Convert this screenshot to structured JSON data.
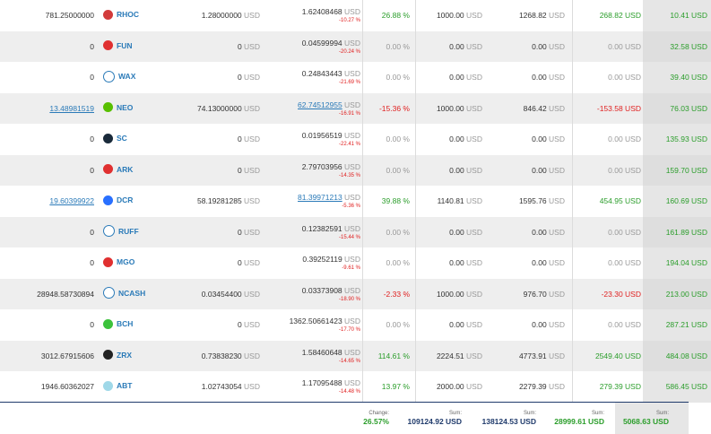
{
  "rows": [
    {
      "holdings": "781.25000000",
      "holdings_link": false,
      "coin": "RHOC",
      "icon": "rhoc-icon",
      "icon_color": "#d23b3b",
      "avg_price": "1.28000000",
      "avg_price_usd": "USD",
      "price": "1.62408468",
      "price_link": false,
      "price_usd": "USD",
      "price_change": "-10.27 %",
      "change": "26.88 %",
      "change_class": "pos",
      "invested": "1000.00",
      "invested_usd": "USD",
      "value": "1268.82",
      "value_usd": "USD",
      "profit": "268.82 USD",
      "profit_class": "pos",
      "last": "10.41 USD"
    },
    {
      "holdings": "0",
      "holdings_link": false,
      "coin": "FUN",
      "icon": "fun-icon",
      "icon_color": "#e03030",
      "avg_price": "0",
      "avg_price_usd": "USD",
      "price": "0.04599994",
      "price_link": false,
      "price_usd": "USD",
      "price_change": "-20.24 %",
      "change": "0.00 %",
      "change_class": "zero",
      "invested": "0.00",
      "invested_usd": "USD",
      "value": "0.00",
      "value_usd": "USD",
      "profit": "0.00 USD",
      "profit_class": "zero",
      "last": "32.58 USD"
    },
    {
      "holdings": "0",
      "holdings_link": false,
      "coin": "WAX",
      "icon": "wax-icon",
      "icon_color": "#ffffff",
      "avg_price": "0",
      "avg_price_usd": "USD",
      "price": "0.24843443",
      "price_link": false,
      "price_usd": "USD",
      "price_change": "-21.69 %",
      "change": "0.00 %",
      "change_class": "zero",
      "invested": "0.00",
      "invested_usd": "USD",
      "value": "0.00",
      "value_usd": "USD",
      "profit": "0.00 USD",
      "profit_class": "zero",
      "last": "39.40 USD"
    },
    {
      "holdings": "13.48981519",
      "holdings_link": true,
      "coin": "NEO",
      "icon": "neo-icon",
      "icon_color": "#58bf00",
      "avg_price": "74.13000000",
      "avg_price_usd": "USD",
      "price": "62.74512955",
      "price_link": true,
      "price_usd": "USD",
      "price_change": "-16.91 %",
      "change": "-15.36 %",
      "change_class": "neg",
      "invested": "1000.00",
      "invested_usd": "USD",
      "value": "846.42",
      "value_usd": "USD",
      "profit": "-153.58 USD",
      "profit_class": "neg",
      "last": "76.03 USD"
    },
    {
      "holdings": "0",
      "holdings_link": false,
      "coin": "SC",
      "icon": "sc-icon",
      "icon_color": "#1a2a3a",
      "avg_price": "0",
      "avg_price_usd": "USD",
      "price": "0.01956519",
      "price_link": false,
      "price_usd": "USD",
      "price_change": "-22.41 %",
      "change": "0.00 %",
      "change_class": "zero",
      "invested": "0.00",
      "invested_usd": "USD",
      "value": "0.00",
      "value_usd": "USD",
      "profit": "0.00 USD",
      "profit_class": "zero",
      "last": "135.93 USD"
    },
    {
      "holdings": "0",
      "holdings_link": false,
      "coin": "ARK",
      "icon": "ark-icon",
      "icon_color": "#e03030",
      "avg_price": "0",
      "avg_price_usd": "USD",
      "price": "2.79703956",
      "price_link": false,
      "price_usd": "USD",
      "price_change": "-14.35 %",
      "change": "0.00 %",
      "change_class": "zero",
      "invested": "0.00",
      "invested_usd": "USD",
      "value": "0.00",
      "value_usd": "USD",
      "profit": "0.00 USD",
      "profit_class": "zero",
      "last": "159.70 USD"
    },
    {
      "holdings": "19.60399922",
      "holdings_link": true,
      "coin": "DCR",
      "icon": "dcr-icon",
      "icon_color": "#2970ff",
      "avg_price": "58.19281285",
      "avg_price_usd": "USD",
      "price": "81.39971213",
      "price_link": true,
      "price_usd": "USD",
      "price_change": "-5.36 %",
      "change": "39.88 %",
      "change_class": "pos",
      "invested": "1140.81",
      "invested_usd": "USD",
      "value": "1595.76",
      "value_usd": "USD",
      "profit": "454.95 USD",
      "profit_class": "pos",
      "last": "160.69 USD"
    },
    {
      "holdings": "0",
      "holdings_link": false,
      "coin": "RUFF",
      "icon": "ruff-icon",
      "icon_color": "#ffffff",
      "avg_price": "0",
      "avg_price_usd": "USD",
      "price": "0.12382591",
      "price_link": false,
      "price_usd": "USD",
      "price_change": "-15.44 %",
      "change": "0.00 %",
      "change_class": "zero",
      "invested": "0.00",
      "invested_usd": "USD",
      "value": "0.00",
      "value_usd": "USD",
      "profit": "0.00 USD",
      "profit_class": "zero",
      "last": "161.89 USD"
    },
    {
      "holdings": "0",
      "holdings_link": false,
      "coin": "MGO",
      "icon": "mgo-icon",
      "icon_color": "#e03030",
      "avg_price": "0",
      "avg_price_usd": "USD",
      "price": "0.39252119",
      "price_link": false,
      "price_usd": "USD",
      "price_change": "-9.61 %",
      "change": "0.00 %",
      "change_class": "zero",
      "invested": "0.00",
      "invested_usd": "USD",
      "value": "0.00",
      "value_usd": "USD",
      "profit": "0.00 USD",
      "profit_class": "zero",
      "last": "194.04 USD"
    },
    {
      "holdings": "28948.58730894",
      "holdings_link": false,
      "coin": "NCASH",
      "icon": "ncash-icon",
      "icon_color": "#ffffff",
      "avg_price": "0.03454400",
      "avg_price_usd": "USD",
      "price": "0.03373908",
      "price_link": false,
      "price_usd": "USD",
      "price_change": "-18.90 %",
      "change": "-2.33 %",
      "change_class": "neg",
      "invested": "1000.00",
      "invested_usd": "USD",
      "value": "976.70",
      "value_usd": "USD",
      "profit": "-23.30 USD",
      "profit_class": "neg",
      "last": "213.00 USD"
    },
    {
      "holdings": "0",
      "holdings_link": false,
      "coin": "BCH",
      "icon": "bch-icon",
      "icon_color": "#3cc23c",
      "avg_price": "0",
      "avg_price_usd": "USD",
      "price": "1362.50661423",
      "price_link": false,
      "price_usd": "USD",
      "price_change": "-17.70 %",
      "change": "0.00 %",
      "change_class": "zero",
      "invested": "0.00",
      "invested_usd": "USD",
      "value": "0.00",
      "value_usd": "USD",
      "profit": "0.00 USD",
      "profit_class": "zero",
      "last": "287.21 USD"
    },
    {
      "holdings": "3012.67915606",
      "holdings_link": false,
      "coin": "ZRX",
      "icon": "zrx-icon",
      "icon_color": "#222222",
      "avg_price": "0.73838230",
      "avg_price_usd": "USD",
      "price": "1.58460648",
      "price_link": false,
      "price_usd": "USD",
      "price_change": "-14.65 %",
      "change": "114.61 %",
      "change_class": "pos",
      "invested": "2224.51",
      "invested_usd": "USD",
      "value": "4773.91",
      "value_usd": "USD",
      "profit": "2549.40 USD",
      "profit_class": "pos",
      "last": "484.08 USD"
    },
    {
      "holdings": "1946.60362027",
      "holdings_link": false,
      "coin": "ABT",
      "icon": "abt-icon",
      "icon_color": "#9fd8e8",
      "avg_price": "1.02743054",
      "avg_price_usd": "USD",
      "price": "1.17095488",
      "price_link": false,
      "price_usd": "USD",
      "price_change": "-14.48 %",
      "change": "13.97 %",
      "change_class": "pos",
      "invested": "2000.00",
      "invested_usd": "USD",
      "value": "2279.39",
      "value_usd": "USD",
      "profit": "279.39 USD",
      "profit_class": "pos",
      "last": "586.45 USD"
    }
  ],
  "footer": {
    "change_label": "Change:",
    "change_value": "26.57%",
    "invested_label": "Sum:",
    "invested_value": "109124.92 USD",
    "value_label": "Sum:",
    "value_value": "138124.53 USD",
    "profit_label": "Sum:",
    "profit_value": "28999.61 USD",
    "last_label": "Sum:",
    "last_value": "5068.63 USD"
  }
}
